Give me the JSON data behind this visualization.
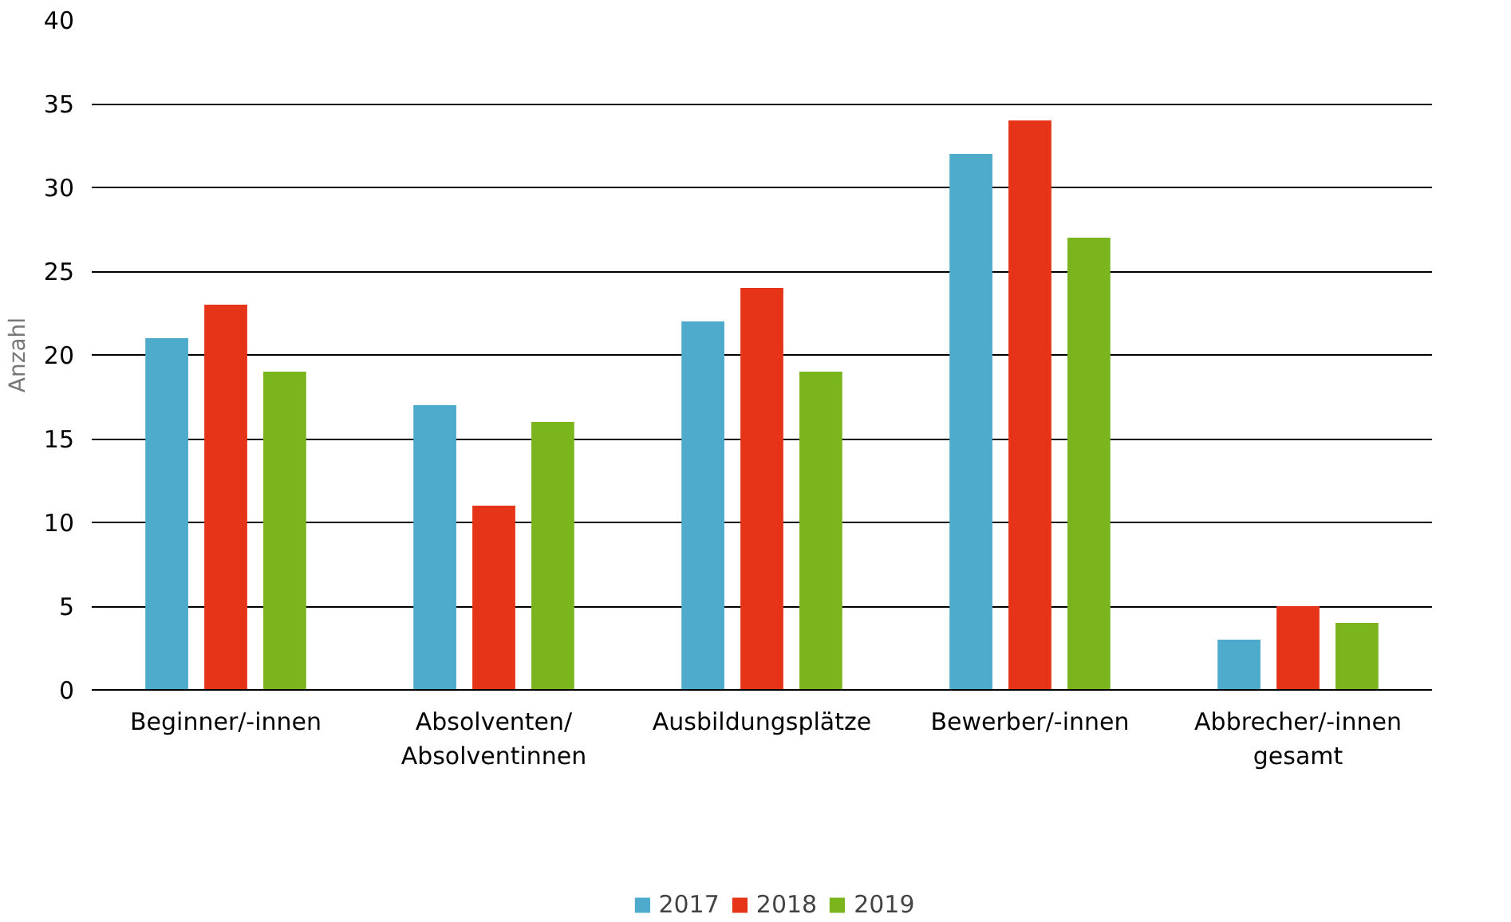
{
  "chart_data": {
    "type": "bar",
    "ylabel": "Anzahl",
    "categories": [
      "Beginner/-innen",
      "Absolventen/\nAbsolventinnen",
      "Ausbildungsplätze",
      "Bewerber/-innen",
      "Abbrecher/-innen\ngesamt"
    ],
    "series": [
      {
        "name": "2017",
        "color": "#4fabcb",
        "values": [
          21,
          17,
          22,
          32,
          3
        ]
      },
      {
        "name": "2018",
        "color": "#e63419",
        "values": [
          23,
          11,
          24,
          34,
          5
        ]
      },
      {
        "name": "2019",
        "color": "#7ab51d",
        "values": [
          19,
          16,
          19,
          27,
          4
        ]
      }
    ],
    "ylim": [
      0,
      40
    ],
    "yticks": [
      0,
      5,
      10,
      15,
      20,
      25,
      30,
      35,
      40
    ],
    "grid": "y",
    "legend": "bottom"
  }
}
